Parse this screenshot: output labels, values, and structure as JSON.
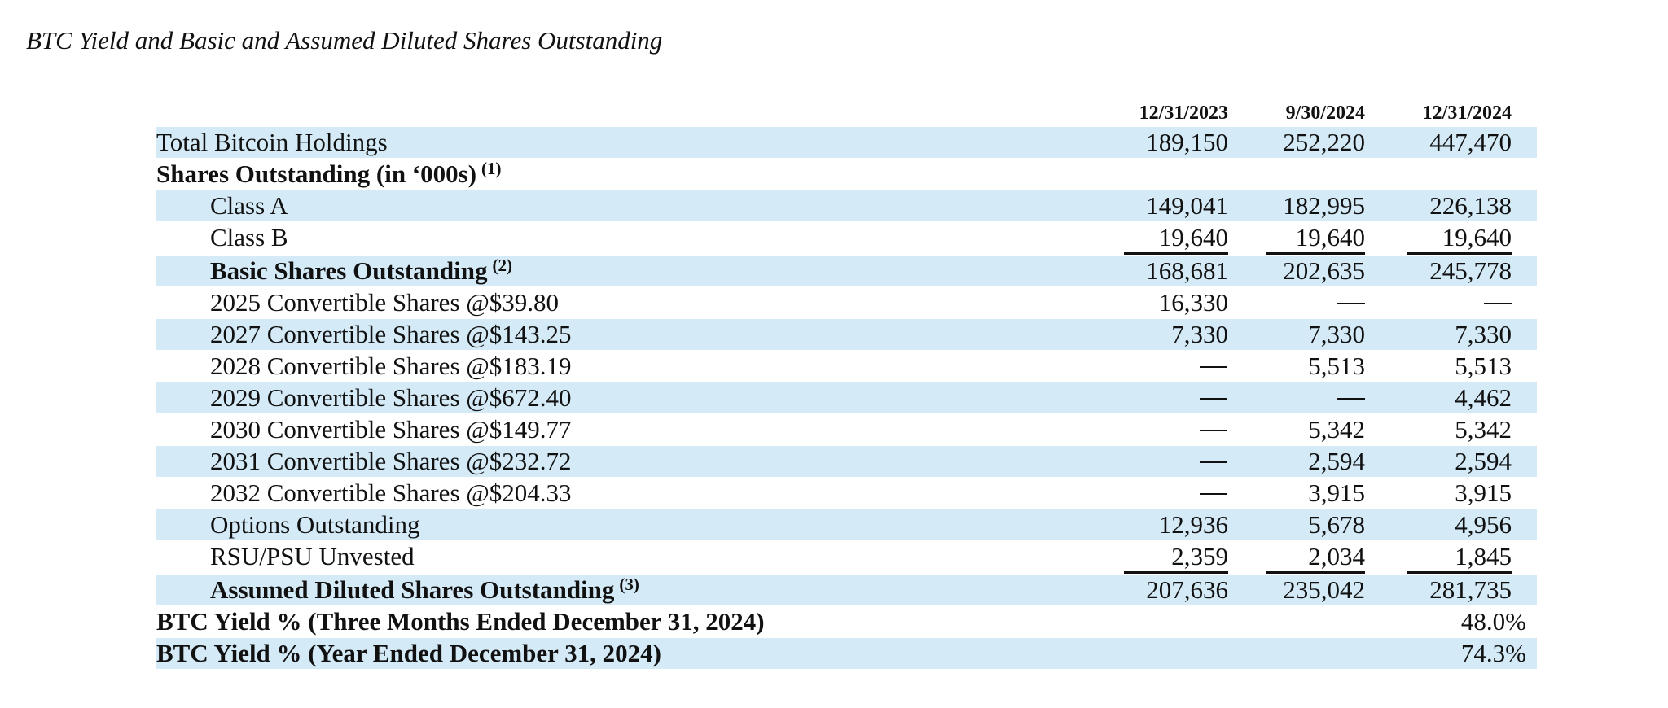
{
  "title": "BTC Yield and Basic and Assumed Diluted Shares Outstanding",
  "columns": [
    "12/31/2023",
    "9/30/2024",
    "12/31/2024"
  ],
  "rows": [
    {
      "label": "Total Bitcoin Holdings",
      "sup": "",
      "indent": false,
      "bold": false,
      "shaded": true,
      "values": [
        "189,150",
        "252,220",
        "447,470"
      ]
    },
    {
      "label": "Shares Outstanding (in ‘000s)",
      "sup": "(1)",
      "indent": false,
      "bold": true,
      "shaded": false,
      "values": [
        "",
        "",
        ""
      ]
    },
    {
      "label": "Class A",
      "sup": "",
      "indent": true,
      "bold": false,
      "shaded": true,
      "values": [
        "149,041",
        "182,995",
        "226,138"
      ]
    },
    {
      "label": "Class B",
      "sup": "",
      "indent": true,
      "bold": false,
      "shaded": false,
      "values": [
        "19,640",
        "19,640",
        "19,640"
      ]
    },
    {
      "label": "Basic Shares Outstanding",
      "sup": "(2)",
      "indent": true,
      "bold": true,
      "shaded": true,
      "values": [
        "168,681",
        "202,635",
        "245,778"
      ]
    },
    {
      "label": "2025 Convertible Shares @$39.80",
      "sup": "",
      "indent": true,
      "bold": false,
      "shaded": false,
      "values": [
        "16,330",
        "—",
        "—"
      ]
    },
    {
      "label": "2027 Convertible Shares @$143.25",
      "sup": "",
      "indent": true,
      "bold": false,
      "shaded": true,
      "values": [
        "7,330",
        "7,330",
        "7,330"
      ]
    },
    {
      "label": "2028 Convertible Shares @$183.19",
      "sup": "",
      "indent": true,
      "bold": false,
      "shaded": false,
      "values": [
        "—",
        "5,513",
        "5,513"
      ]
    },
    {
      "label": "2029 Convertible Shares @$672.40",
      "sup": "",
      "indent": true,
      "bold": false,
      "shaded": true,
      "values": [
        "—",
        "—",
        "4,462"
      ]
    },
    {
      "label": "2030 Convertible Shares @$149.77",
      "sup": "",
      "indent": true,
      "bold": false,
      "shaded": false,
      "values": [
        "—",
        "5,342",
        "5,342"
      ]
    },
    {
      "label": "2031 Convertible Shares @$232.72",
      "sup": "",
      "indent": true,
      "bold": false,
      "shaded": true,
      "values": [
        "—",
        "2,594",
        "2,594"
      ]
    },
    {
      "label": "2032 Convertible Shares @$204.33",
      "sup": "",
      "indent": true,
      "bold": false,
      "shaded": false,
      "values": [
        "—",
        "3,915",
        "3,915"
      ]
    },
    {
      "label": "Options Outstanding",
      "sup": "",
      "indent": true,
      "bold": false,
      "shaded": true,
      "values": [
        "12,936",
        "5,678",
        "4,956"
      ]
    },
    {
      "label": "RSU/PSU Unvested",
      "sup": "",
      "indent": true,
      "bold": false,
      "shaded": false,
      "values": [
        "2,359",
        "2,034",
        "1,845"
      ]
    },
    {
      "label": "Assumed Diluted Shares Outstanding",
      "sup": "(3)",
      "indent": true,
      "bold": true,
      "shaded": true,
      "values": [
        "207,636",
        "235,042",
        "281,735"
      ]
    },
    {
      "label": "BTC Yield % (Three Months Ended December 31, 2024)",
      "sup": "",
      "indent": false,
      "bold": true,
      "shaded": false,
      "values": [
        "",
        "",
        "48.0%"
      ]
    },
    {
      "label": "BTC Yield % (Year Ended December 31, 2024)",
      "sup": "",
      "indent": false,
      "bold": true,
      "shaded": true,
      "values": [
        "",
        "",
        "74.3%"
      ]
    }
  ],
  "colors": {
    "row_shading": "#d4eaf7",
    "text": "#111111"
  }
}
